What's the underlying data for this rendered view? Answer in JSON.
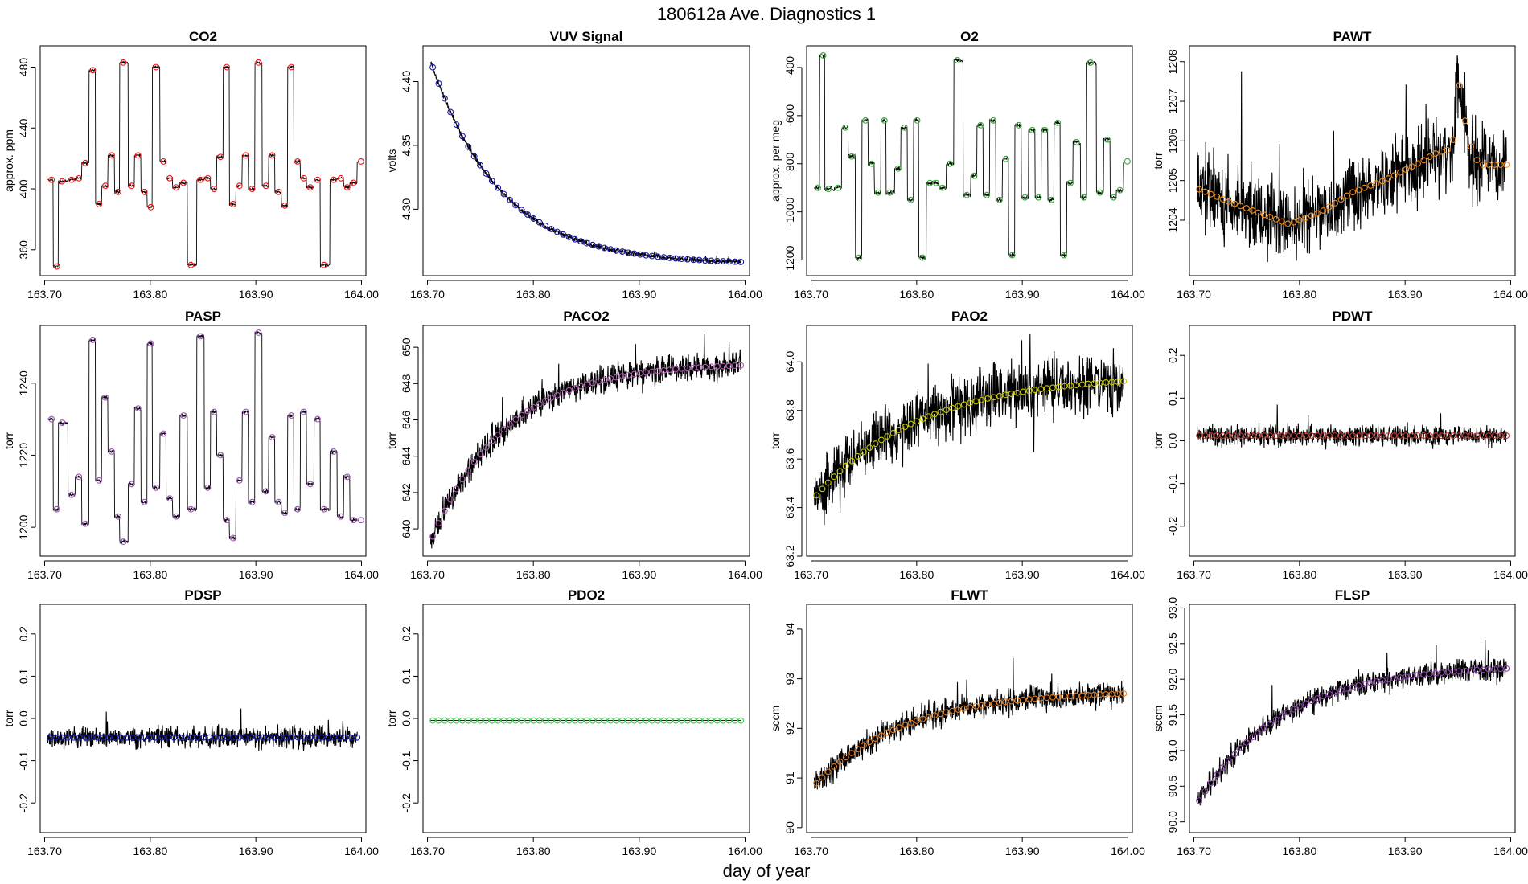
{
  "figure": {
    "title": "180612a   Ave. Diagnostics 1",
    "xlabel": "day of year"
  },
  "chart_data": [
    {
      "type": "line",
      "title": "CO2",
      "ylabel": "approx. ppm",
      "xlim": [
        163.7,
        164.0
      ],
      "ylim": [
        343,
        494
      ],
      "xticks": [
        "163.70",
        "163.80",
        "163.90",
        "164.00"
      ],
      "yticks": [
        [
          "360",
          360
        ],
        [
          "400",
          400
        ],
        [
          "440",
          440
        ],
        [
          "480",
          480
        ]
      ],
      "marker_color": "#e41a1c",
      "mode": "steps",
      "noise": 0.6,
      "levels": [
        [
          163.703,
          406
        ],
        [
          163.708,
          349
        ],
        [
          163.713,
          405
        ],
        [
          163.722,
          406
        ],
        [
          163.729,
          407
        ],
        [
          163.735,
          417
        ],
        [
          163.742,
          478
        ],
        [
          163.748,
          390
        ],
        [
          163.754,
          402
        ],
        [
          163.76,
          422
        ],
        [
          163.766,
          398
        ],
        [
          163.771,
          483
        ],
        [
          163.779,
          402
        ],
        [
          163.785,
          422
        ],
        [
          163.791,
          398
        ],
        [
          163.797,
          388
        ],
        [
          163.802,
          480
        ],
        [
          163.809,
          418
        ],
        [
          163.815,
          407
        ],
        [
          163.821,
          401
        ],
        [
          163.828,
          404
        ],
        [
          163.835,
          350
        ],
        [
          163.844,
          406
        ],
        [
          163.851,
          407
        ],
        [
          163.857,
          400
        ],
        [
          163.863,
          421
        ],
        [
          163.869,
          480
        ],
        [
          163.875,
          390
        ],
        [
          163.881,
          402
        ],
        [
          163.887,
          422
        ],
        [
          163.893,
          400
        ],
        [
          163.899,
          483
        ],
        [
          163.906,
          402
        ],
        [
          163.912,
          422
        ],
        [
          163.918,
          398
        ],
        [
          163.924,
          389
        ],
        [
          163.93,
          480
        ],
        [
          163.936,
          418
        ],
        [
          163.942,
          407
        ],
        [
          163.948,
          401
        ],
        [
          163.955,
          406
        ],
        [
          163.961,
          350
        ],
        [
          163.97,
          406
        ],
        [
          163.977,
          407
        ],
        [
          163.983,
          401
        ],
        [
          163.989,
          404
        ],
        [
          163.996,
          418
        ]
      ]
    },
    {
      "type": "line",
      "title": "VUV Signal",
      "ylabel": "volts",
      "xlim": [
        163.7,
        164.0
      ],
      "ylim": [
        4.248,
        4.428
      ],
      "xticks": [
        "163.70",
        "163.80",
        "163.90",
        "164.00"
      ],
      "yticks": [
        [
          "4.30",
          4.3
        ],
        [
          "4.35",
          4.35
        ],
        [
          "4.40",
          4.4
        ]
      ],
      "marker_color": "#1a1a9e",
      "mode": "decay",
      "start": 4.416,
      "end": 4.257,
      "rate": 0.065,
      "noise": 0.0015
    },
    {
      "type": "line",
      "title": "O2",
      "ylabel": "approx. per meg",
      "xlim": [
        163.7,
        164.0
      ],
      "ylim": [
        -1265,
        -310
      ],
      "xticks": [
        "163.70",
        "163.80",
        "163.90",
        "164.00"
      ],
      "yticks": [
        [
          "-1200",
          -1200
        ],
        [
          "-1000",
          -1000
        ],
        [
          "-800",
          -800
        ],
        [
          "-600",
          -600
        ],
        [
          "-400",
          -400
        ]
      ],
      "marker_color": "#3caa3c",
      "mode": "steps",
      "noise": 6,
      "levels": [
        [
          163.703,
          -900
        ],
        [
          163.708,
          -350
        ],
        [
          163.713,
          -905
        ],
        [
          163.722,
          -900
        ],
        [
          163.729,
          -650
        ],
        [
          163.735,
          -770
        ],
        [
          163.742,
          -1190
        ],
        [
          163.748,
          -620
        ],
        [
          163.754,
          -800
        ],
        [
          163.76,
          -920
        ],
        [
          163.766,
          -620
        ],
        [
          163.771,
          -920
        ],
        [
          163.779,
          -820
        ],
        [
          163.785,
          -650
        ],
        [
          163.791,
          -950
        ],
        [
          163.797,
          -620
        ],
        [
          163.802,
          -1190
        ],
        [
          163.809,
          -880
        ],
        [
          163.815,
          -880
        ],
        [
          163.821,
          -900
        ],
        [
          163.828,
          -800
        ],
        [
          163.835,
          -370
        ],
        [
          163.844,
          -930
        ],
        [
          163.851,
          -850
        ],
        [
          163.857,
          -640
        ],
        [
          163.863,
          -930
        ],
        [
          163.869,
          -620
        ],
        [
          163.875,
          -950
        ],
        [
          163.881,
          -780
        ],
        [
          163.887,
          -1180
        ],
        [
          163.893,
          -640
        ],
        [
          163.899,
          -940
        ],
        [
          163.906,
          -660
        ],
        [
          163.912,
          -940
        ],
        [
          163.918,
          -660
        ],
        [
          163.924,
          -950
        ],
        [
          163.93,
          -630
        ],
        [
          163.936,
          -1180
        ],
        [
          163.942,
          -880
        ],
        [
          163.948,
          -710
        ],
        [
          163.955,
          -940
        ],
        [
          163.961,
          -380
        ],
        [
          163.97,
          -920
        ],
        [
          163.977,
          -700
        ],
        [
          163.983,
          -940
        ],
        [
          163.989,
          -910
        ],
        [
          163.996,
          -790
        ]
      ]
    },
    {
      "type": "line",
      "title": "PAWT",
      "ylabel": "torr",
      "xlim": [
        163.7,
        164.0
      ],
      "ylim": [
        1202.6,
        1208.4
      ],
      "xticks": [
        "163.70",
        "163.80",
        "163.90",
        "164.00"
      ],
      "yticks": [
        [
          "1204",
          1204
        ],
        [
          "1205",
          1205
        ],
        [
          "1206",
          1206
        ],
        [
          "1207",
          1207
        ],
        [
          "1208",
          1208
        ]
      ],
      "marker_color": "#f08c1e",
      "mode": "series",
      "noise": 0.7,
      "series_points": [
        [
          163.703,
          1204.8
        ],
        [
          163.73,
          1204.5
        ],
        [
          163.76,
          1204.2
        ],
        [
          163.79,
          1203.9
        ],
        [
          163.82,
          1204.2
        ],
        [
          163.85,
          1204.7
        ],
        [
          163.88,
          1205.0
        ],
        [
          163.91,
          1205.4
        ],
        [
          163.93,
          1205.7
        ],
        [
          163.945,
          1205.8
        ],
        [
          163.95,
          1207.6
        ],
        [
          163.96,
          1206.0
        ],
        [
          163.97,
          1205.4
        ],
        [
          163.996,
          1205.4
        ]
      ]
    },
    {
      "type": "line",
      "title": "PASP",
      "ylabel": "torr",
      "xlim": [
        163.7,
        164.0
      ],
      "ylim": [
        1192,
        1256
      ],
      "xticks": [
        "163.70",
        "163.80",
        "163.90",
        "164.00"
      ],
      "yticks": [
        [
          "1200",
          1200
        ],
        [
          "1220",
          1220
        ],
        [
          "1240",
          1240
        ]
      ],
      "marker_color": "#9b59b6",
      "mode": "steps",
      "noise": 0.35,
      "levels": [
        [
          163.703,
          1230
        ],
        [
          163.708,
          1205
        ],
        [
          163.713,
          1229
        ],
        [
          163.722,
          1209
        ],
        [
          163.729,
          1214
        ],
        [
          163.735,
          1201
        ],
        [
          163.742,
          1252
        ],
        [
          163.748,
          1213
        ],
        [
          163.754,
          1236
        ],
        [
          163.76,
          1221
        ],
        [
          163.766,
          1203
        ],
        [
          163.771,
          1196
        ],
        [
          163.779,
          1212
        ],
        [
          163.785,
          1233
        ],
        [
          163.791,
          1207
        ],
        [
          163.797,
          1251
        ],
        [
          163.802,
          1211
        ],
        [
          163.809,
          1226
        ],
        [
          163.815,
          1208
        ],
        [
          163.821,
          1203
        ],
        [
          163.828,
          1231
        ],
        [
          163.835,
          1205
        ],
        [
          163.844,
          1253
        ],
        [
          163.851,
          1211
        ],
        [
          163.857,
          1232
        ],
        [
          163.863,
          1220
        ],
        [
          163.869,
          1202
        ],
        [
          163.875,
          1197
        ],
        [
          163.881,
          1213
        ],
        [
          163.887,
          1232
        ],
        [
          163.893,
          1207
        ],
        [
          163.899,
          1254
        ],
        [
          163.906,
          1210
        ],
        [
          163.912,
          1225
        ],
        [
          163.918,
          1207
        ],
        [
          163.924,
          1204
        ],
        [
          163.93,
          1231
        ],
        [
          163.936,
          1205
        ],
        [
          163.942,
          1232
        ],
        [
          163.948,
          1212
        ],
        [
          163.955,
          1230
        ],
        [
          163.961,
          1205
        ],
        [
          163.97,
          1221
        ],
        [
          163.977,
          1203
        ],
        [
          163.983,
          1214
        ],
        [
          163.989,
          1202
        ],
        [
          163.996,
          1202
        ]
      ]
    },
    {
      "type": "line",
      "title": "PACO2",
      "ylabel": "torr",
      "xlim": [
        163.7,
        164.0
      ],
      "ylim": [
        638.5,
        651.2
      ],
      "xticks": [
        "163.70",
        "163.80",
        "163.90",
        "164.00"
      ],
      "yticks": [
        [
          "640",
          640
        ],
        [
          "642",
          642
        ],
        [
          "644",
          644
        ],
        [
          "646",
          646
        ],
        [
          "648",
          648
        ],
        [
          "650",
          650
        ]
      ],
      "marker_color": "#b05fb0",
      "mode": "rise",
      "start": 639.3,
      "end": 649.0,
      "rate": 0.07,
      "noise": 0.55
    },
    {
      "type": "line",
      "title": "PAO2",
      "ylabel": "torr",
      "xlim": [
        163.7,
        164.0
      ],
      "ylim": [
        63.2,
        64.15
      ],
      "xticks": [
        "163.70",
        "163.80",
        "163.90",
        "164.00"
      ],
      "yticks": [
        [
          "63.2",
          63.2
        ],
        [
          "63.4",
          63.4
        ],
        [
          "63.6",
          63.6
        ],
        [
          "63.8",
          63.8
        ],
        [
          "64.0",
          64.0
        ]
      ],
      "marker_color": "#c8c800",
      "mode": "rise",
      "start": 63.44,
      "end": 63.92,
      "rate": 0.1,
      "noise": 0.09
    },
    {
      "type": "line",
      "title": "PDWT",
      "ylabel": "torr",
      "xlim": [
        163.7,
        164.0
      ],
      "ylim": [
        -0.27,
        0.27
      ],
      "xticks": [
        "163.70",
        "163.80",
        "163.90",
        "164.00"
      ],
      "yticks": [
        [
          "-0.2",
          -0.2
        ],
        [
          "-0.1",
          -0.1
        ],
        [
          "0.0",
          0.0
        ],
        [
          "0.1",
          0.1
        ],
        [
          "0.2",
          0.2
        ]
      ],
      "marker_color": "#c0392b",
      "mode": "flat",
      "start": 0.012,
      "noise": 0.018
    },
    {
      "type": "line",
      "title": "PDSP",
      "ylabel": "torr",
      "xlim": [
        163.7,
        164.0
      ],
      "ylim": [
        -0.27,
        0.27
      ],
      "xticks": [
        "163.70",
        "163.80",
        "163.90",
        "164.00"
      ],
      "yticks": [
        [
          "-0.2",
          -0.2
        ],
        [
          "-0.1",
          -0.1
        ],
        [
          "0.0",
          0.0
        ],
        [
          "0.1",
          0.1
        ],
        [
          "0.2",
          0.2
        ]
      ],
      "marker_color": "#1a1a9e",
      "mode": "flat",
      "start": -0.045,
      "noise": 0.018
    },
    {
      "type": "line",
      "title": "PDO2",
      "ylabel": "torr",
      "xlim": [
        163.7,
        164.0
      ],
      "ylim": [
        -0.27,
        0.27
      ],
      "xticks": [
        "163.70",
        "163.80",
        "163.90",
        "164.00"
      ],
      "yticks": [
        [
          "-0.2",
          -0.2
        ],
        [
          "-0.1",
          -0.1
        ],
        [
          "0.0",
          0.0
        ],
        [
          "0.1",
          0.1
        ],
        [
          "0.2",
          0.2
        ]
      ],
      "marker_color": "#2ecc40",
      "mode": "flat",
      "start": -0.005,
      "noise": 0.0
    },
    {
      "type": "line",
      "title": "FLWT",
      "ylabel": "sccm",
      "xlim": [
        163.7,
        164.0
      ],
      "ylim": [
        89.9,
        94.5
      ],
      "xticks": [
        "163.70",
        "163.80",
        "163.90",
        "164.00"
      ],
      "yticks": [
        [
          "90",
          90
        ],
        [
          "91",
          91
        ],
        [
          "92",
          92
        ],
        [
          "93",
          93
        ],
        [
          "94",
          94
        ]
      ],
      "marker_color": "#e67e22",
      "mode": "rise",
      "start": 90.85,
      "end": 92.7,
      "rate": 0.085,
      "noise": 0.2
    },
    {
      "type": "line",
      "title": "FLSP",
      "ylabel": "sccm",
      "xlim": [
        163.7,
        164.0
      ],
      "ylim": [
        89.85,
        93.05
      ],
      "xticks": [
        "163.70",
        "163.80",
        "163.90",
        "164.00"
      ],
      "yticks": [
        [
          "90.0",
          90.0
        ],
        [
          "90.5",
          90.5
        ],
        [
          "91.0",
          91.0
        ],
        [
          "91.5",
          91.5
        ],
        [
          "92.0",
          92.0
        ],
        [
          "92.5",
          92.5
        ],
        [
          "93.0",
          93.0
        ]
      ],
      "marker_color": "#8e44ad",
      "mode": "rise",
      "start": 90.25,
      "end": 92.15,
      "rate": 0.08,
      "noise": 0.12
    }
  ]
}
